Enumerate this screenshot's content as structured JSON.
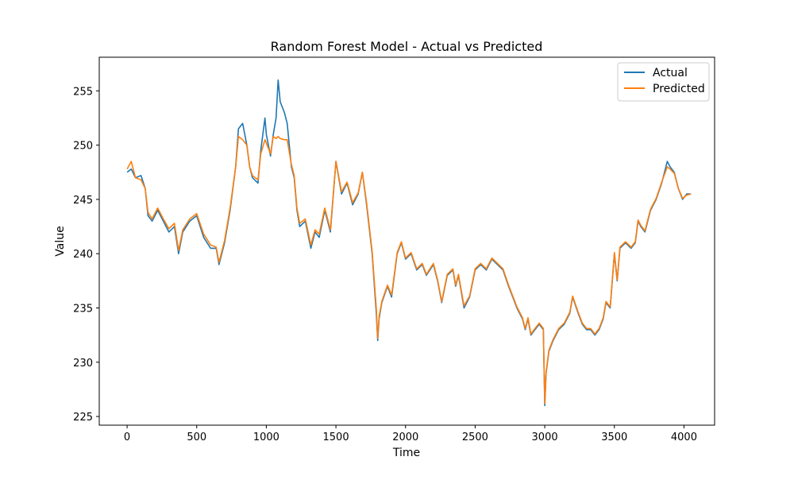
{
  "chart_data": {
    "type": "line",
    "title": "Random Forest Model - Actual vs Predicted",
    "xlabel": "Time",
    "ylabel": "Value",
    "xlim": [
      -200,
      4220
    ],
    "ylim": [
      224.2,
      258.1
    ],
    "xticks": [
      0,
      500,
      1000,
      1500,
      2000,
      2500,
      3000,
      3500,
      4000
    ],
    "yticks": [
      225,
      230,
      235,
      240,
      245,
      250,
      255
    ],
    "grid": false,
    "legend": "top-right",
    "series": [
      {
        "name": "Actual",
        "color": "#1f77b4",
        "x": [
          0,
          30,
          60,
          100,
          130,
          150,
          180,
          220,
          260,
          300,
          340,
          370,
          400,
          450,
          500,
          550,
          600,
          640,
          660,
          700,
          740,
          780,
          800,
          830,
          860,
          880,
          900,
          940,
          960,
          990,
          1000,
          1030,
          1050,
          1070,
          1085,
          1100,
          1130,
          1150,
          1180,
          1200,
          1220,
          1240,
          1280,
          1320,
          1350,
          1380,
          1420,
          1440,
          1460,
          1500,
          1540,
          1580,
          1620,
          1660,
          1690,
          1720,
          1760,
          1790,
          1800,
          1810,
          1830,
          1870,
          1900,
          1940,
          1970,
          2000,
          2040,
          2080,
          2120,
          2150,
          2200,
          2230,
          2260,
          2300,
          2340,
          2360,
          2380,
          2420,
          2460,
          2500,
          2540,
          2580,
          2620,
          2660,
          2700,
          2740,
          2770,
          2800,
          2840,
          2860,
          2880,
          2900,
          2930,
          2960,
          2990,
          3000,
          3010,
          3030,
          3060,
          3100,
          3140,
          3180,
          3200,
          3240,
          3270,
          3300,
          3330,
          3360,
          3390,
          3420,
          3440,
          3470,
          3500,
          3520,
          3540,
          3580,
          3620,
          3650,
          3670,
          3690,
          3720,
          3760,
          3800,
          3840,
          3880,
          3900,
          3930,
          3960,
          3990,
          4020,
          4050
        ],
        "y": [
          247.5,
          247.8,
          247.0,
          247.2,
          246.0,
          243.5,
          243.0,
          244.0,
          243.0,
          242.0,
          242.5,
          240.0,
          242.0,
          243.0,
          243.5,
          241.5,
          240.5,
          240.5,
          239.0,
          241.0,
          244.0,
          248.0,
          251.5,
          252.0,
          250.0,
          248.0,
          247.0,
          246.5,
          249.5,
          252.5,
          251.0,
          249.0,
          251.0,
          252.5,
          256.0,
          254.0,
          253.0,
          252.0,
          248.0,
          247.0,
          244.0,
          242.5,
          243.0,
          240.5,
          242.0,
          241.5,
          244.0,
          243.0,
          242.0,
          248.5,
          245.5,
          246.5,
          244.5,
          245.5,
          247.5,
          244.5,
          240.0,
          234.5,
          232.0,
          234.0,
          235.5,
          237.0,
          236.0,
          240.0,
          241.0,
          239.5,
          240.0,
          238.5,
          239.0,
          238.0,
          239.0,
          237.5,
          235.5,
          238.0,
          238.5,
          237.0,
          238.0,
          235.0,
          236.0,
          238.5,
          239.0,
          238.5,
          239.5,
          239.0,
          238.5,
          237.0,
          236.0,
          235.0,
          234.0,
          233.0,
          234.0,
          232.5,
          233.0,
          233.5,
          233.0,
          226.0,
          229.0,
          231.0,
          232.0,
          233.0,
          233.5,
          234.5,
          236.0,
          234.5,
          233.5,
          233.0,
          233.0,
          232.5,
          233.0,
          234.0,
          235.5,
          235.0,
          240.0,
          237.5,
          240.5,
          241.0,
          240.5,
          241.0,
          243.0,
          242.5,
          242.0,
          244.0,
          245.0,
          246.5,
          248.5,
          248.0,
          247.5,
          246.0,
          245.0,
          245.5,
          245.5
        ]
      },
      {
        "name": "Predicted",
        "color": "#ff7f0e",
        "x": [
          0,
          30,
          60,
          100,
          130,
          150,
          180,
          220,
          260,
          300,
          340,
          370,
          400,
          450,
          500,
          550,
          600,
          640,
          660,
          700,
          740,
          780,
          800,
          830,
          860,
          880,
          900,
          940,
          960,
          990,
          1000,
          1030,
          1050,
          1070,
          1085,
          1100,
          1130,
          1150,
          1180,
          1200,
          1220,
          1240,
          1280,
          1320,
          1350,
          1380,
          1420,
          1440,
          1460,
          1500,
          1540,
          1580,
          1620,
          1660,
          1690,
          1720,
          1760,
          1790,
          1800,
          1810,
          1830,
          1870,
          1900,
          1940,
          1970,
          2000,
          2040,
          2080,
          2120,
          2150,
          2200,
          2230,
          2260,
          2300,
          2340,
          2360,
          2380,
          2420,
          2460,
          2500,
          2540,
          2580,
          2620,
          2660,
          2700,
          2740,
          2770,
          2800,
          2840,
          2860,
          2880,
          2900,
          2930,
          2960,
          2990,
          3000,
          3010,
          3030,
          3060,
          3100,
          3140,
          3180,
          3200,
          3240,
          3270,
          3300,
          3330,
          3360,
          3390,
          3420,
          3440,
          3470,
          3500,
          3520,
          3540,
          3580,
          3620,
          3650,
          3670,
          3690,
          3720,
          3760,
          3800,
          3840,
          3880,
          3900,
          3930,
          3960,
          3990,
          4020,
          4050
        ],
        "y": [
          247.8,
          248.5,
          247.0,
          246.8,
          246.0,
          243.8,
          243.2,
          244.2,
          243.2,
          242.3,
          242.8,
          240.3,
          242.2,
          243.2,
          243.7,
          241.8,
          240.8,
          240.6,
          239.2,
          241.2,
          244.2,
          248.0,
          250.8,
          250.5,
          250.0,
          248.0,
          247.2,
          246.8,
          249.2,
          250.5,
          250.2,
          249.2,
          250.8,
          250.6,
          250.8,
          250.6,
          250.5,
          250.5,
          248.2,
          247.2,
          244.2,
          242.8,
          243.2,
          240.8,
          242.2,
          241.8,
          244.2,
          243.2,
          242.2,
          248.5,
          245.7,
          246.6,
          244.7,
          245.6,
          247.5,
          244.7,
          240.2,
          235.0,
          232.2,
          234.2,
          235.6,
          237.1,
          236.2,
          240.1,
          241.1,
          239.6,
          240.1,
          238.6,
          239.1,
          238.1,
          239.1,
          237.6,
          235.6,
          238.1,
          238.6,
          237.1,
          238.1,
          235.2,
          236.1,
          238.6,
          239.1,
          238.6,
          239.6,
          239.1,
          238.6,
          237.1,
          236.1,
          235.1,
          234.1,
          233.1,
          234.1,
          232.6,
          233.1,
          233.6,
          233.1,
          226.2,
          229.1,
          231.1,
          232.1,
          233.1,
          233.6,
          234.6,
          236.1,
          234.6,
          233.6,
          233.1,
          233.1,
          232.6,
          233.1,
          234.1,
          235.6,
          235.1,
          240.1,
          237.6,
          240.6,
          241.1,
          240.6,
          241.1,
          243.1,
          242.6,
          242.1,
          244.1,
          245.1,
          246.6,
          248.0,
          247.8,
          247.4,
          246.0,
          245.1,
          245.4,
          245.5
        ]
      }
    ]
  }
}
